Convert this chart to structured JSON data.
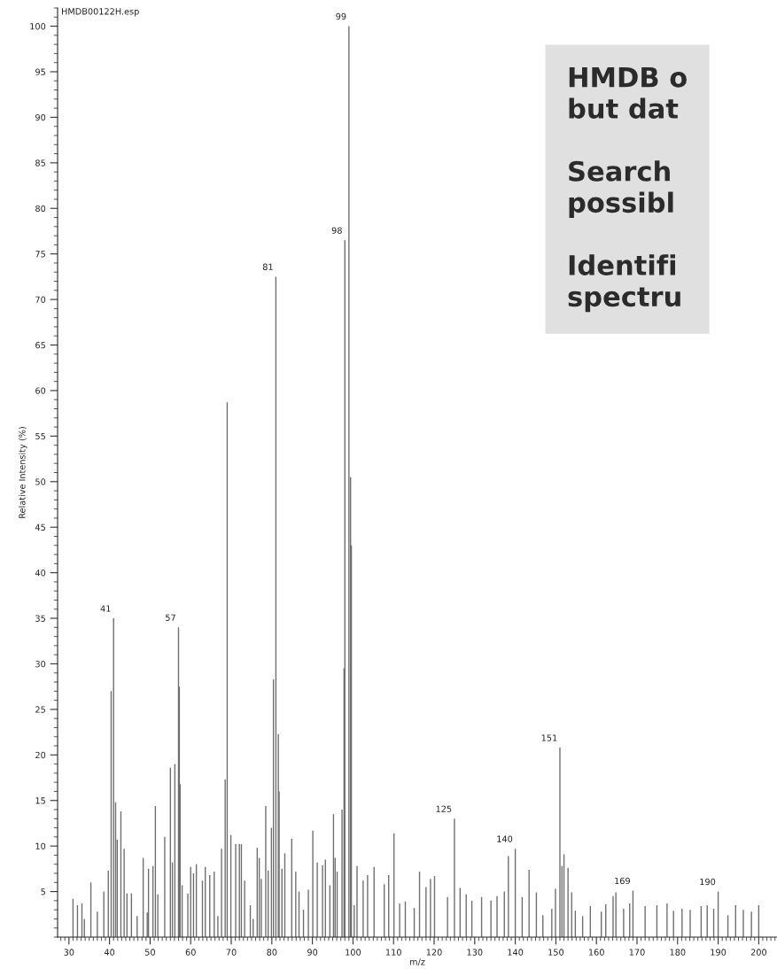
{
  "chart_data": {
    "type": "bar",
    "title": "HMDB00122H.esp",
    "xlabel": "m/z",
    "ylabel": "Relative Intensity (%)",
    "x": [
      31.0,
      32.1,
      33.2,
      33.8,
      35.4,
      37.0,
      38.6,
      39.7,
      40.4,
      41,
      41.5,
      41.9,
      42.8,
      43.6,
      44.3,
      45.4,
      46.8,
      48.3,
      49.3,
      49.6,
      50.7,
      51.3,
      51.9,
      53.6,
      55.0,
      55.5,
      56.1,
      57,
      57.2,
      57.4,
      57.9,
      59.3,
      60.0,
      60.7,
      61.4,
      62.9,
      63.6,
      64.7,
      65.8,
      66.7,
      67.6,
      68.5,
      69,
      69.9,
      71.1,
      72.0,
      72.5,
      73.3,
      74.7,
      75.4,
      76.4,
      76.9,
      77.4,
      78.5,
      79.1,
      79.9,
      80.4,
      81,
      81.6,
      81.8,
      82.5,
      83.2,
      84.9,
      85.9,
      86.7,
      87.8,
      89.0,
      90.1,
      91.2,
      92.5,
      93.2,
      94.3,
      95.2,
      95.6,
      96.1,
      97.3,
      97.8,
      98,
      99,
      99.4,
      99.6,
      100.3,
      101.0,
      102.5,
      103.6,
      105.2,
      107.7,
      108.8,
      110.1,
      111.5,
      112.9,
      115.1,
      116.4,
      118.0,
      119.1,
      120.1,
      123.3,
      125,
      126.4,
      127.9,
      129.3,
      131.7,
      134.0,
      135.5,
      137.3,
      138.3,
      140,
      141.7,
      143.4,
      145.2,
      146.8,
      149.0,
      149.9,
      151,
      151.5,
      152.0,
      153.0,
      153.9,
      154.8,
      156.6,
      158.5,
      161.2,
      162.3,
      164.1,
      164.8,
      166.7,
      168.2,
      169,
      172.0,
      174.9,
      177.4,
      179.0,
      181.1,
      183.1,
      185.8,
      187.3,
      188.9,
      190,
      192.4,
      194.3,
      196.2,
      198.2,
      200.0
    ],
    "values": [
      4.2,
      3.5,
      3.7,
      2.0,
      6.0,
      2.8,
      5.0,
      7.3,
      27,
      35,
      14.8,
      10.7,
      13.8,
      9.7,
      4.8,
      4.8,
      2.3,
      8.7,
      2.7,
      7.5,
      7.8,
      14.4,
      4.7,
      11,
      18.6,
      8.2,
      19,
      34,
      27.5,
      16.8,
      5.7,
      4.8,
      7.7,
      7,
      8,
      6.2,
      7.7,
      6.8,
      7.2,
      2.3,
      9.7,
      17.3,
      58.7,
      11.2,
      10.2,
      10.2,
      10.2,
      6.2,
      3.5,
      2,
      9.8,
      8.7,
      6.4,
      14.4,
      7.3,
      12,
      28.3,
      72.5,
      22.3,
      16,
      7.5,
      9.2,
      10.8,
      7.2,
      5,
      3,
      5.2,
      11.7,
      8.2,
      7.9,
      8.5,
      5.7,
      13.5,
      8.7,
      7.2,
      14,
      29.5,
      76.5,
      100,
      50.5,
      43,
      3.5,
      7.8,
      6.2,
      6.8,
      7.7,
      5.8,
      6.8,
      11.4,
      3.7,
      3.9,
      3.2,
      7.2,
      5.5,
      6.4,
      6.7,
      4.4,
      13,
      5.4,
      4.7,
      4,
      4.4,
      4,
      4.5,
      5,
      8.9,
      9.7,
      4.4,
      7.4,
      4.9,
      2.4,
      3.1,
      5.3,
      20.8,
      7.8,
      9.1,
      7.6,
      4.9,
      2.9,
      2.3,
      3.4,
      2.8,
      3.6,
      4.5,
      4.9,
      3.1,
      3.7,
      5.1,
      3.4,
      3.5,
      3.7,
      2.9,
      3.1,
      3,
      3.4,
      3.5,
      3.1,
      5,
      2.4,
      3.5,
      3,
      2.8,
      3.5
    ],
    "color": "#6e6e6e",
    "xlim": [
      27.2,
      204.5
    ],
    "xticks": [
      30,
      40,
      50,
      60,
      70,
      80,
      90,
      100,
      110,
      120,
      130,
      140,
      150,
      160,
      170,
      180,
      190,
      200
    ],
    "ylim": [
      0,
      102
    ],
    "yticks": [
      5,
      10,
      15,
      20,
      25,
      30,
      35,
      40,
      45,
      50,
      55,
      60,
      65,
      70,
      75,
      80,
      85,
      90,
      95,
      100
    ],
    "annotations": [
      {
        "text": "41",
        "x": 41,
        "y": 35
      },
      {
        "text": "57",
        "x": 57,
        "y": 34
      },
      {
        "text": "81",
        "x": 81,
        "y": 72.5
      },
      {
        "text": "98",
        "x": 98,
        "y": 76.5
      },
      {
        "text": "99",
        "x": 99,
        "y": 100
      },
      {
        "text": "125",
        "x": 125,
        "y": 13
      },
      {
        "text": "140",
        "x": 140,
        "y": 9.7
      },
      {
        "text": "151",
        "x": 151,
        "y": 20.8
      },
      {
        "text": "169",
        "x": 169,
        "y": 5.1
      },
      {
        "text": "190",
        "x": 190,
        "y": 5
      },
      "HMDB o\nbut dat\n\nSearch\npossibl\n\nIdentifi\nspectru"
    ]
  }
}
